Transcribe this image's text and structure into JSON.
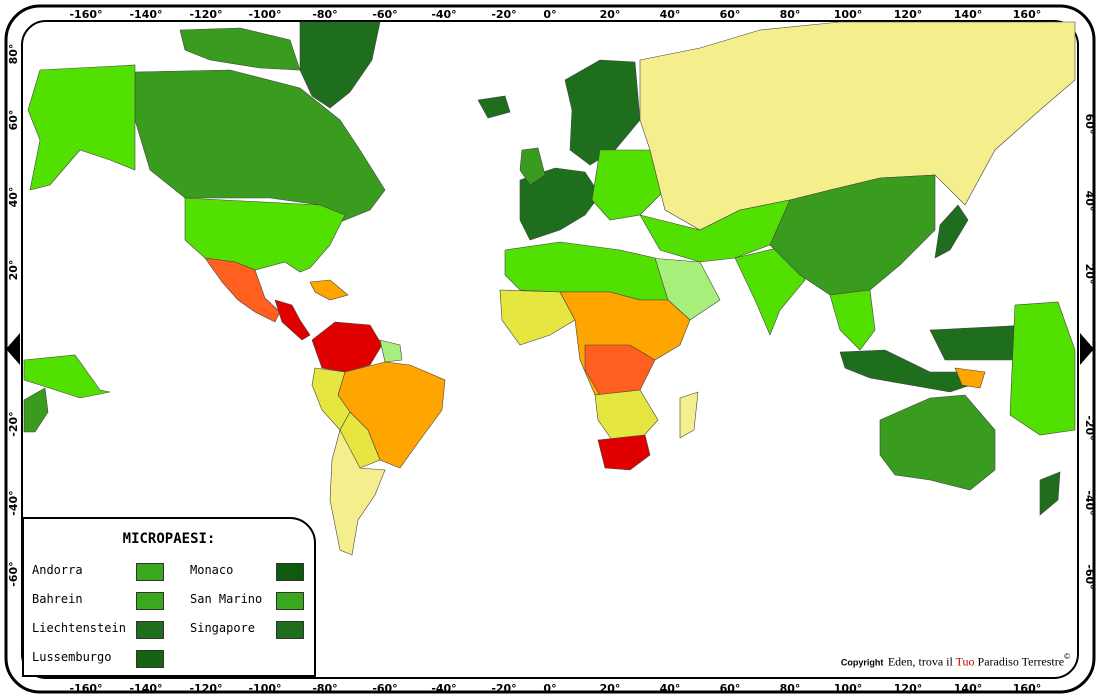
{
  "map": {
    "top_longitude_labels": [
      "-160°",
      "-140°",
      "-120°",
      "-100°",
      "-80°",
      "-60°",
      "-40°",
      "-20°",
      "0°",
      "20°",
      "40°",
      "60°",
      "80°",
      "100°",
      "120°",
      "140°",
      "160°"
    ],
    "bottom_longitude_labels": [
      "-160°",
      "-140°",
      "-120°",
      "-100°",
      "-80°",
      "-60°",
      "-40°",
      "-20°",
      "0°",
      "20°",
      "40°",
      "60°",
      "80°",
      "100°",
      "120°",
      "140°",
      "160°"
    ],
    "left_latitude_labels": [
      "80°",
      "60°",
      "40°",
      "20°",
      "-20°",
      "-40°",
      "-60°"
    ],
    "right_latitude_labels": [
      "60°",
      "40°",
      "20°",
      "-20°",
      "-40°",
      "-60°"
    ],
    "colors": {
      "dark_green": "#1e6e1e",
      "mid_green": "#3a9c1e",
      "light_green": "#52e000",
      "pale_green": "#a8ee7a",
      "yellow": "#e6e640",
      "pale_yellow": "#f4ef8c",
      "orange": "#ffa500",
      "orange_red": "#ff6020",
      "red": "#e00000",
      "ocean": "#ffffff"
    }
  },
  "legend": {
    "title": "MICROPAESI:",
    "items": [
      {
        "label": "Andorra",
        "color": "#3aa81e"
      },
      {
        "label": "Bahrein",
        "color": "#3aa81e"
      },
      {
        "label": "Liechtenstein",
        "color": "#1e6e1e"
      },
      {
        "label": "Lussemburgo",
        "color": "#146414"
      },
      {
        "label": "Monaco",
        "color": "#0e5a0e"
      },
      {
        "label": "San Marino",
        "color": "#3aa81e"
      },
      {
        "label": "Singapore",
        "color": "#1e6e1e"
      }
    ]
  },
  "copyright": {
    "label": "Copyright",
    "text_prefix": "Eden, trova il ",
    "text_highlight": "Tuo",
    "text_suffix": " Paradiso Terrestre",
    "symbol": "©"
  }
}
